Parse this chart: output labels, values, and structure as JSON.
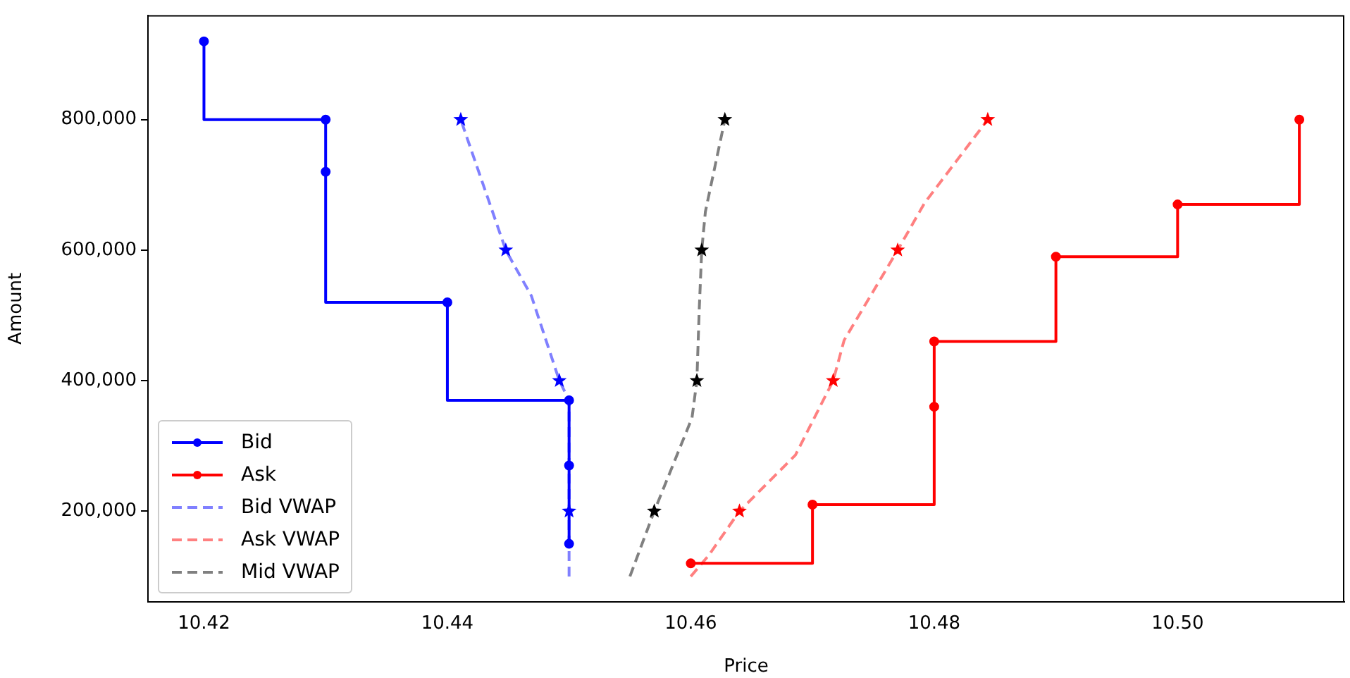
{
  "chart_data": {
    "type": "line",
    "xlabel": "Price",
    "ylabel": "Amount",
    "xlim": [
      10.4154,
      10.5137
    ],
    "ylim": [
      61000,
      960000
    ],
    "xticks": [
      10.42,
      10.44,
      10.46,
      10.48,
      {
        "value": 10.5,
        "label": "10.50"
      }
    ],
    "yticks": [
      {
        "value": 200000,
        "label": "200,000"
      },
      {
        "value": 400000,
        "label": "400,000"
      },
      {
        "value": 600000,
        "label": "600,000"
      },
      {
        "value": 800000,
        "label": "800,000"
      }
    ],
    "grid": false,
    "legend": "bottom left",
    "series": [
      {
        "name": "Bid",
        "type": "step",
        "color": "#0000ff",
        "marker": "circle",
        "line_style": "solid",
        "x": [
          10.45,
          10.45,
          10.45,
          10.44,
          10.43,
          10.43,
          10.42
        ],
        "values": [
          150000,
          270000,
          370000,
          520000,
          720000,
          800000,
          920000
        ]
      },
      {
        "name": "Ask",
        "type": "step",
        "color": "#ff0000",
        "marker": "circle",
        "line_style": "solid",
        "x": [
          10.46,
          10.47,
          10.48,
          10.48,
          10.49,
          10.5,
          10.51
        ],
        "values": [
          120000,
          210000,
          360000,
          460000,
          590000,
          670000,
          800000
        ]
      },
      {
        "name": "Bid VWAP",
        "type": "line",
        "color": "#8080ff",
        "marker": "none",
        "line_style": "dashed",
        "x": [
          10.45,
          10.45,
          10.45,
          10.4492,
          10.4469,
          10.4448,
          10.4411
        ],
        "values": [
          100000,
          200000,
          370000,
          400000,
          530000,
          600000,
          800000
        ]
      },
      {
        "name": "Ask VWAP",
        "type": "line",
        "color": "#ff8080",
        "marker": "none",
        "line_style": "dashed",
        "x": [
          10.46,
          10.4615,
          10.464,
          10.4686,
          10.4717,
          10.4726,
          10.477,
          10.4792,
          10.4844
        ],
        "values": [
          100000,
          133000,
          200000,
          286000,
          400000,
          462000,
          600000,
          672000,
          800000
        ]
      },
      {
        "name": "Mid VWAP",
        "type": "line",
        "color": "#808080",
        "marker": "none",
        "line_style": "dashed",
        "x": [
          10.455,
          10.457,
          10.4575,
          10.4601,
          10.4605,
          10.4607,
          10.4609,
          10.4612,
          10.4628
        ],
        "values": [
          100000,
          200000,
          223000,
          343000,
          400000,
          512000,
          600000,
          659000,
          800000
        ]
      },
      {
        "type": "scatter",
        "color": "#0000ff",
        "marker": "star",
        "x": [
          10.45,
          10.4492,
          10.4448,
          10.4411
        ],
        "values": [
          200000,
          400000,
          600000,
          800000
        ]
      },
      {
        "type": "scatter",
        "color": "#ff0000",
        "marker": "star",
        "x": [
          10.464,
          10.4717,
          10.477,
          10.4844
        ],
        "values": [
          200000,
          400000,
          600000,
          800000
        ]
      },
      {
        "type": "scatter",
        "color": "#000000",
        "marker": "star",
        "x": [
          10.457,
          10.4605,
          10.4609,
          10.4628
        ],
        "values": [
          200000,
          400000,
          600000,
          800000
        ]
      }
    ]
  }
}
